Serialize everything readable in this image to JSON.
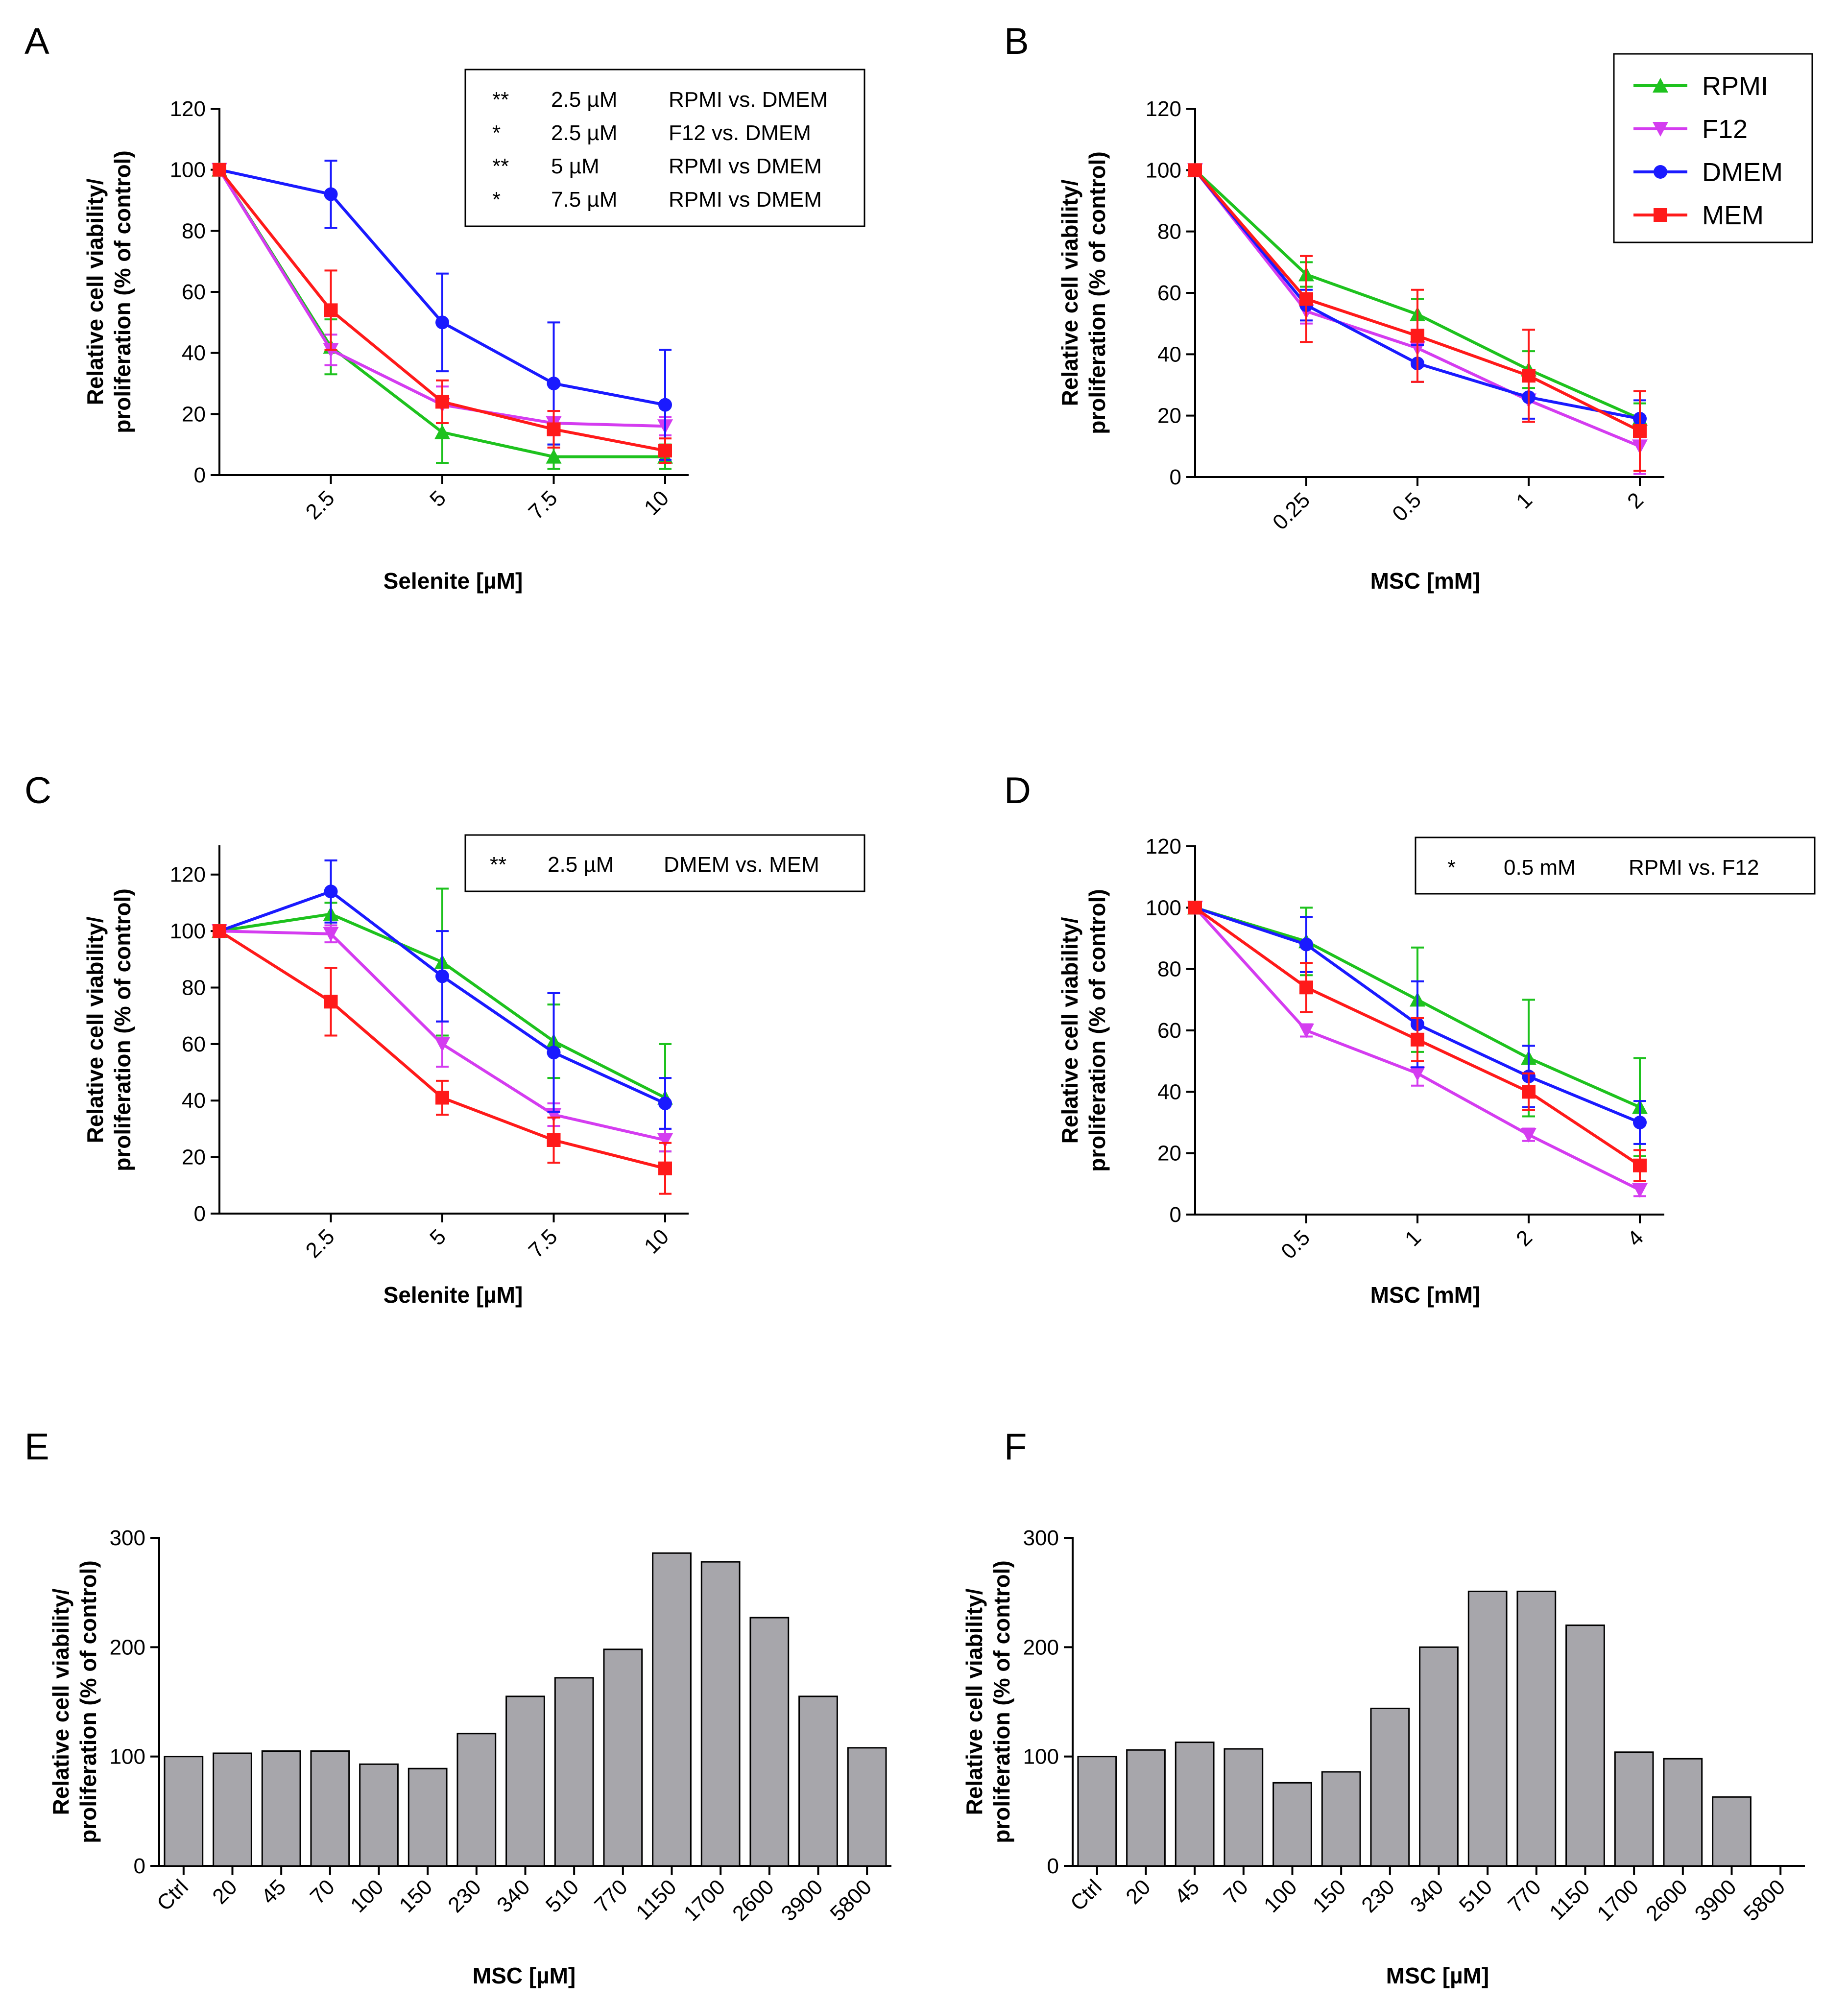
{
  "figure": {
    "series_colors": {
      "RPMI": "#1ec21e",
      "F12": "#d43cf0",
      "DMEM": "#1a1aff",
      "MEM": "#ff1a1a"
    },
    "bar_color": "#a7a6ab",
    "legend": {
      "entries": [
        {
          "label": "RPMI",
          "marker": "triangle-up",
          "color": "#1ec21e"
        },
        {
          "label": "F12",
          "marker": "triangle-down",
          "color": "#d43cf0"
        },
        {
          "label": "DMEM",
          "marker": "circle",
          "color": "#1a1aff"
        },
        {
          "label": "MEM",
          "marker": "square",
          "color": "#ff1a1a"
        }
      ]
    }
  },
  "chart_data": [
    {
      "panel": "A",
      "type": "line",
      "xlabel": "Selenite [µM]",
      "ylabel_line1": "Relative cell viability/",
      "ylabel_line2": "proliferation (% of control)",
      "categories": [
        "0",
        "2.5",
        "5",
        "7.5",
        "10"
      ],
      "tick_labels": [
        "",
        "2.5",
        "5",
        "7.5",
        "10"
      ],
      "ylim": [
        0,
        120
      ],
      "yticks": [
        0,
        20,
        40,
        60,
        80,
        100,
        120
      ],
      "series": [
        {
          "name": "RPMI",
          "values": [
            100,
            42,
            14,
            6,
            6
          ],
          "errors": [
            0,
            9,
            10,
            4,
            4
          ]
        },
        {
          "name": "F12",
          "values": [
            100,
            41,
            23,
            17,
            16
          ],
          "errors": [
            0,
            5,
            6,
            4,
            3
          ]
        },
        {
          "name": "DMEM",
          "values": [
            100,
            92,
            50,
            30,
            23
          ],
          "errors": [
            0,
            11,
            16,
            20,
            18
          ]
        },
        {
          "name": "MEM",
          "values": [
            100,
            54,
            24,
            15,
            8
          ],
          "errors": [
            0,
            13,
            7,
            6,
            4
          ]
        }
      ],
      "stats": [
        {
          "sig": "**",
          "conc": "2.5 µM",
          "comparison": "RPMI vs. DMEM"
        },
        {
          "sig": "*",
          "conc": "2.5 µM",
          "comparison": "F12 vs. DMEM"
        },
        {
          "sig": "**",
          "conc": "5 µM",
          "comparison": "RPMI vs DMEM"
        },
        {
          "sig": "*",
          "conc": "7.5 µM",
          "comparison": "RPMI vs DMEM"
        }
      ]
    },
    {
      "panel": "B",
      "type": "line",
      "xlabel": "MSC [mM]",
      "ylabel_line1": "Relative cell viability/",
      "ylabel_line2": "proliferation (% of control)",
      "categories": [
        "0",
        "0.25",
        "0.5",
        "1",
        "2"
      ],
      "tick_labels": [
        "",
        "0.25",
        "0.5",
        "1",
        "2"
      ],
      "ylim": [
        0,
        120
      ],
      "yticks": [
        0,
        20,
        40,
        60,
        80,
        100,
        120
      ],
      "series": [
        {
          "name": "RPMI",
          "values": [
            100,
            66,
            53,
            35,
            19
          ],
          "errors": [
            0,
            4,
            5,
            6,
            5
          ]
        },
        {
          "name": "F12",
          "values": [
            100,
            54,
            42,
            25,
            10
          ],
          "errors": [
            0,
            4,
            6,
            7,
            9
          ]
        },
        {
          "name": "DMEM",
          "values": [
            100,
            56,
            37,
            26,
            19
          ],
          "errors": [
            0,
            5,
            6,
            7,
            6
          ]
        },
        {
          "name": "MEM",
          "values": [
            100,
            58,
            46,
            33,
            15
          ],
          "errors": [
            0,
            14,
            15,
            15,
            13
          ]
        }
      ],
      "stats": []
    },
    {
      "panel": "C",
      "type": "line",
      "xlabel": "Selenite [µM]",
      "ylabel_line1": "Relative cell viability/",
      "ylabel_line2": "proliferation (% of control)",
      "categories": [
        "0",
        "2.5",
        "5",
        "7.5",
        "10"
      ],
      "tick_labels": [
        "",
        "2.5",
        "5",
        "7.5",
        "10"
      ],
      "ylim": [
        0,
        130
      ],
      "yticks": [
        0,
        20,
        40,
        60,
        80,
        100,
        120
      ],
      "series": [
        {
          "name": "RPMI",
          "values": [
            100,
            106,
            89,
            61,
            41
          ],
          "errors": [
            0,
            4,
            26,
            13,
            19
          ]
        },
        {
          "name": "F12",
          "values": [
            100,
            99,
            60,
            35,
            26
          ],
          "errors": [
            0,
            3,
            8,
            4,
            4
          ]
        },
        {
          "name": "DMEM",
          "values": [
            100,
            114,
            84,
            57,
            39
          ],
          "errors": [
            0,
            11,
            16,
            21,
            9
          ]
        },
        {
          "name": "MEM",
          "values": [
            100,
            75,
            41,
            26,
            16
          ],
          "errors": [
            0,
            12,
            6,
            8,
            9
          ]
        }
      ],
      "stats": [
        {
          "sig": "**",
          "conc": "2.5 µM",
          "comparison": "DMEM vs. MEM"
        }
      ]
    },
    {
      "panel": "D",
      "type": "line",
      "xlabel": "MSC [mM]",
      "ylabel_line1": "Relative cell viability/",
      "ylabel_line2": "proliferation (% of control)",
      "categories": [
        "0",
        "0.5",
        "1",
        "2",
        "4"
      ],
      "tick_labels": [
        "",
        "0.5",
        "1",
        "2",
        "4"
      ],
      "ylim": [
        0,
        120
      ],
      "yticks": [
        0,
        20,
        40,
        60,
        80,
        100,
        120
      ],
      "series": [
        {
          "name": "RPMI",
          "values": [
            100,
            89,
            70,
            51,
            35
          ],
          "errors": [
            0,
            11,
            17,
            19,
            16
          ]
        },
        {
          "name": "F12",
          "values": [
            100,
            60,
            46,
            26,
            8
          ],
          "errors": [
            0,
            2,
            4,
            2,
            2
          ]
        },
        {
          "name": "DMEM",
          "values": [
            100,
            88,
            62,
            45,
            30
          ],
          "errors": [
            0,
            9,
            14,
            10,
            7
          ]
        },
        {
          "name": "MEM",
          "values": [
            100,
            74,
            57,
            40,
            16
          ],
          "errors": [
            0,
            8,
            7,
            6,
            5
          ]
        }
      ],
      "stats": [
        {
          "sig": "*",
          "conc": "0.5 mM",
          "comparison": "RPMI vs. F12"
        }
      ]
    },
    {
      "panel": "E",
      "type": "bar",
      "xlabel": "MSC [µM]",
      "ylabel_line1": "Relative cell viability/",
      "ylabel_line2": "proliferation (% of control)",
      "categories": [
        "Ctrl",
        "20",
        "45",
        "70",
        "100",
        "150",
        "230",
        "340",
        "510",
        "770",
        "1150",
        "1700",
        "2600",
        "3900",
        "5800"
      ],
      "values": [
        100,
        103,
        105,
        105,
        93,
        89,
        121,
        155,
        172,
        198,
        286,
        278,
        227,
        155,
        108
      ],
      "ylim": [
        0,
        300
      ],
      "yticks": [
        0,
        100,
        200,
        300
      ]
    },
    {
      "panel": "F",
      "type": "bar",
      "xlabel": "MSC [µM]",
      "ylabel_line1": "Relative cell viability/",
      "ylabel_line2": "proliferation (% of control)",
      "categories": [
        "Ctrl",
        "20",
        "45",
        "70",
        "100",
        "150",
        "230",
        "340",
        "510",
        "770",
        "1150",
        "1700",
        "2600",
        "3900",
        "5800"
      ],
      "values": [
        100,
        106,
        113,
        107,
        76,
        86,
        144,
        200,
        251,
        251,
        220,
        104,
        98,
        63,
        0
      ],
      "ylim": [
        0,
        300
      ],
      "yticks": [
        0,
        100,
        200,
        300
      ]
    }
  ]
}
